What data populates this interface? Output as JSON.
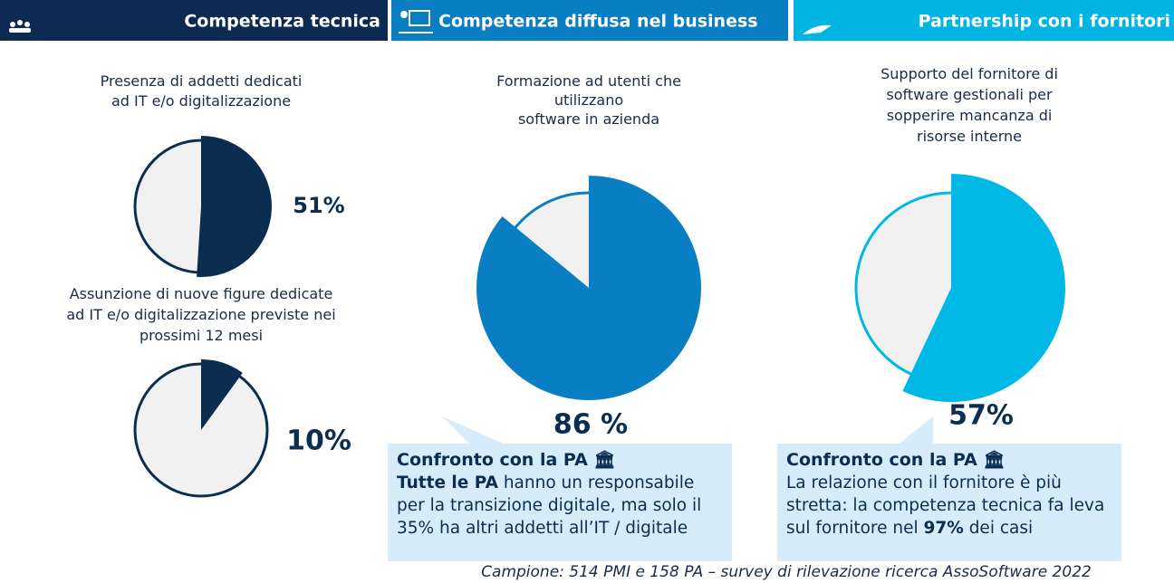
{
  "headers": [
    "Competenza tecnica",
    "Competenza diffusa nel business",
    "Partnership con i fornitori"
  ],
  "chart_data": [
    {
      "type": "pie",
      "title": [
        "Presenza di addetti dedicati",
        "ad IT e/o digitalizzazione"
      ],
      "values": [
        51
      ],
      "value_labels": [
        "51%"
      ],
      "color": "#0b2d50"
    },
    {
      "type": "pie",
      "title": [
        "Assunzione di nuove figure dedicate",
        "ad IT e/o digitalizzazione previste nei",
        "prossimi 12 mesi"
      ],
      "values": [
        10
      ],
      "value_labels": [
        "10%"
      ],
      "color": "#0b2d50"
    },
    {
      "type": "pie",
      "title": [
        "Formazione ad utenti che",
        "utilizzano",
        "software in azienda"
      ],
      "values": [
        86
      ],
      "value_labels": [
        "86 %"
      ],
      "color": "#0a7ec2"
    },
    {
      "type": "pie",
      "title": [
        "Supporto del fornitore di",
        "software gestionali per",
        "sopperire mancanza di",
        "risorse interne"
      ],
      "values": [
        57
      ],
      "value_labels": [
        "57%"
      ],
      "color": "#00b8e6"
    }
  ],
  "callouts": [
    {
      "title": "Confronto con la PA",
      "parts": [
        "Tutte le PA",
        " hanno un responsabile per la transizione digitale, ma solo il 35% ha altri addetti all’IT / digitale"
      ]
    },
    {
      "title": "Confronto con la PA",
      "parts": [
        "La relazione con il fornitore è più stretta: la competenza tecnica fa leva sul fornitore nel ",
        "97%",
        " dei casi"
      ]
    }
  ],
  "footer": "Campione: 514 PMI e 158 PA – survey di rilevazione ricerca AssoSoftware 2022"
}
